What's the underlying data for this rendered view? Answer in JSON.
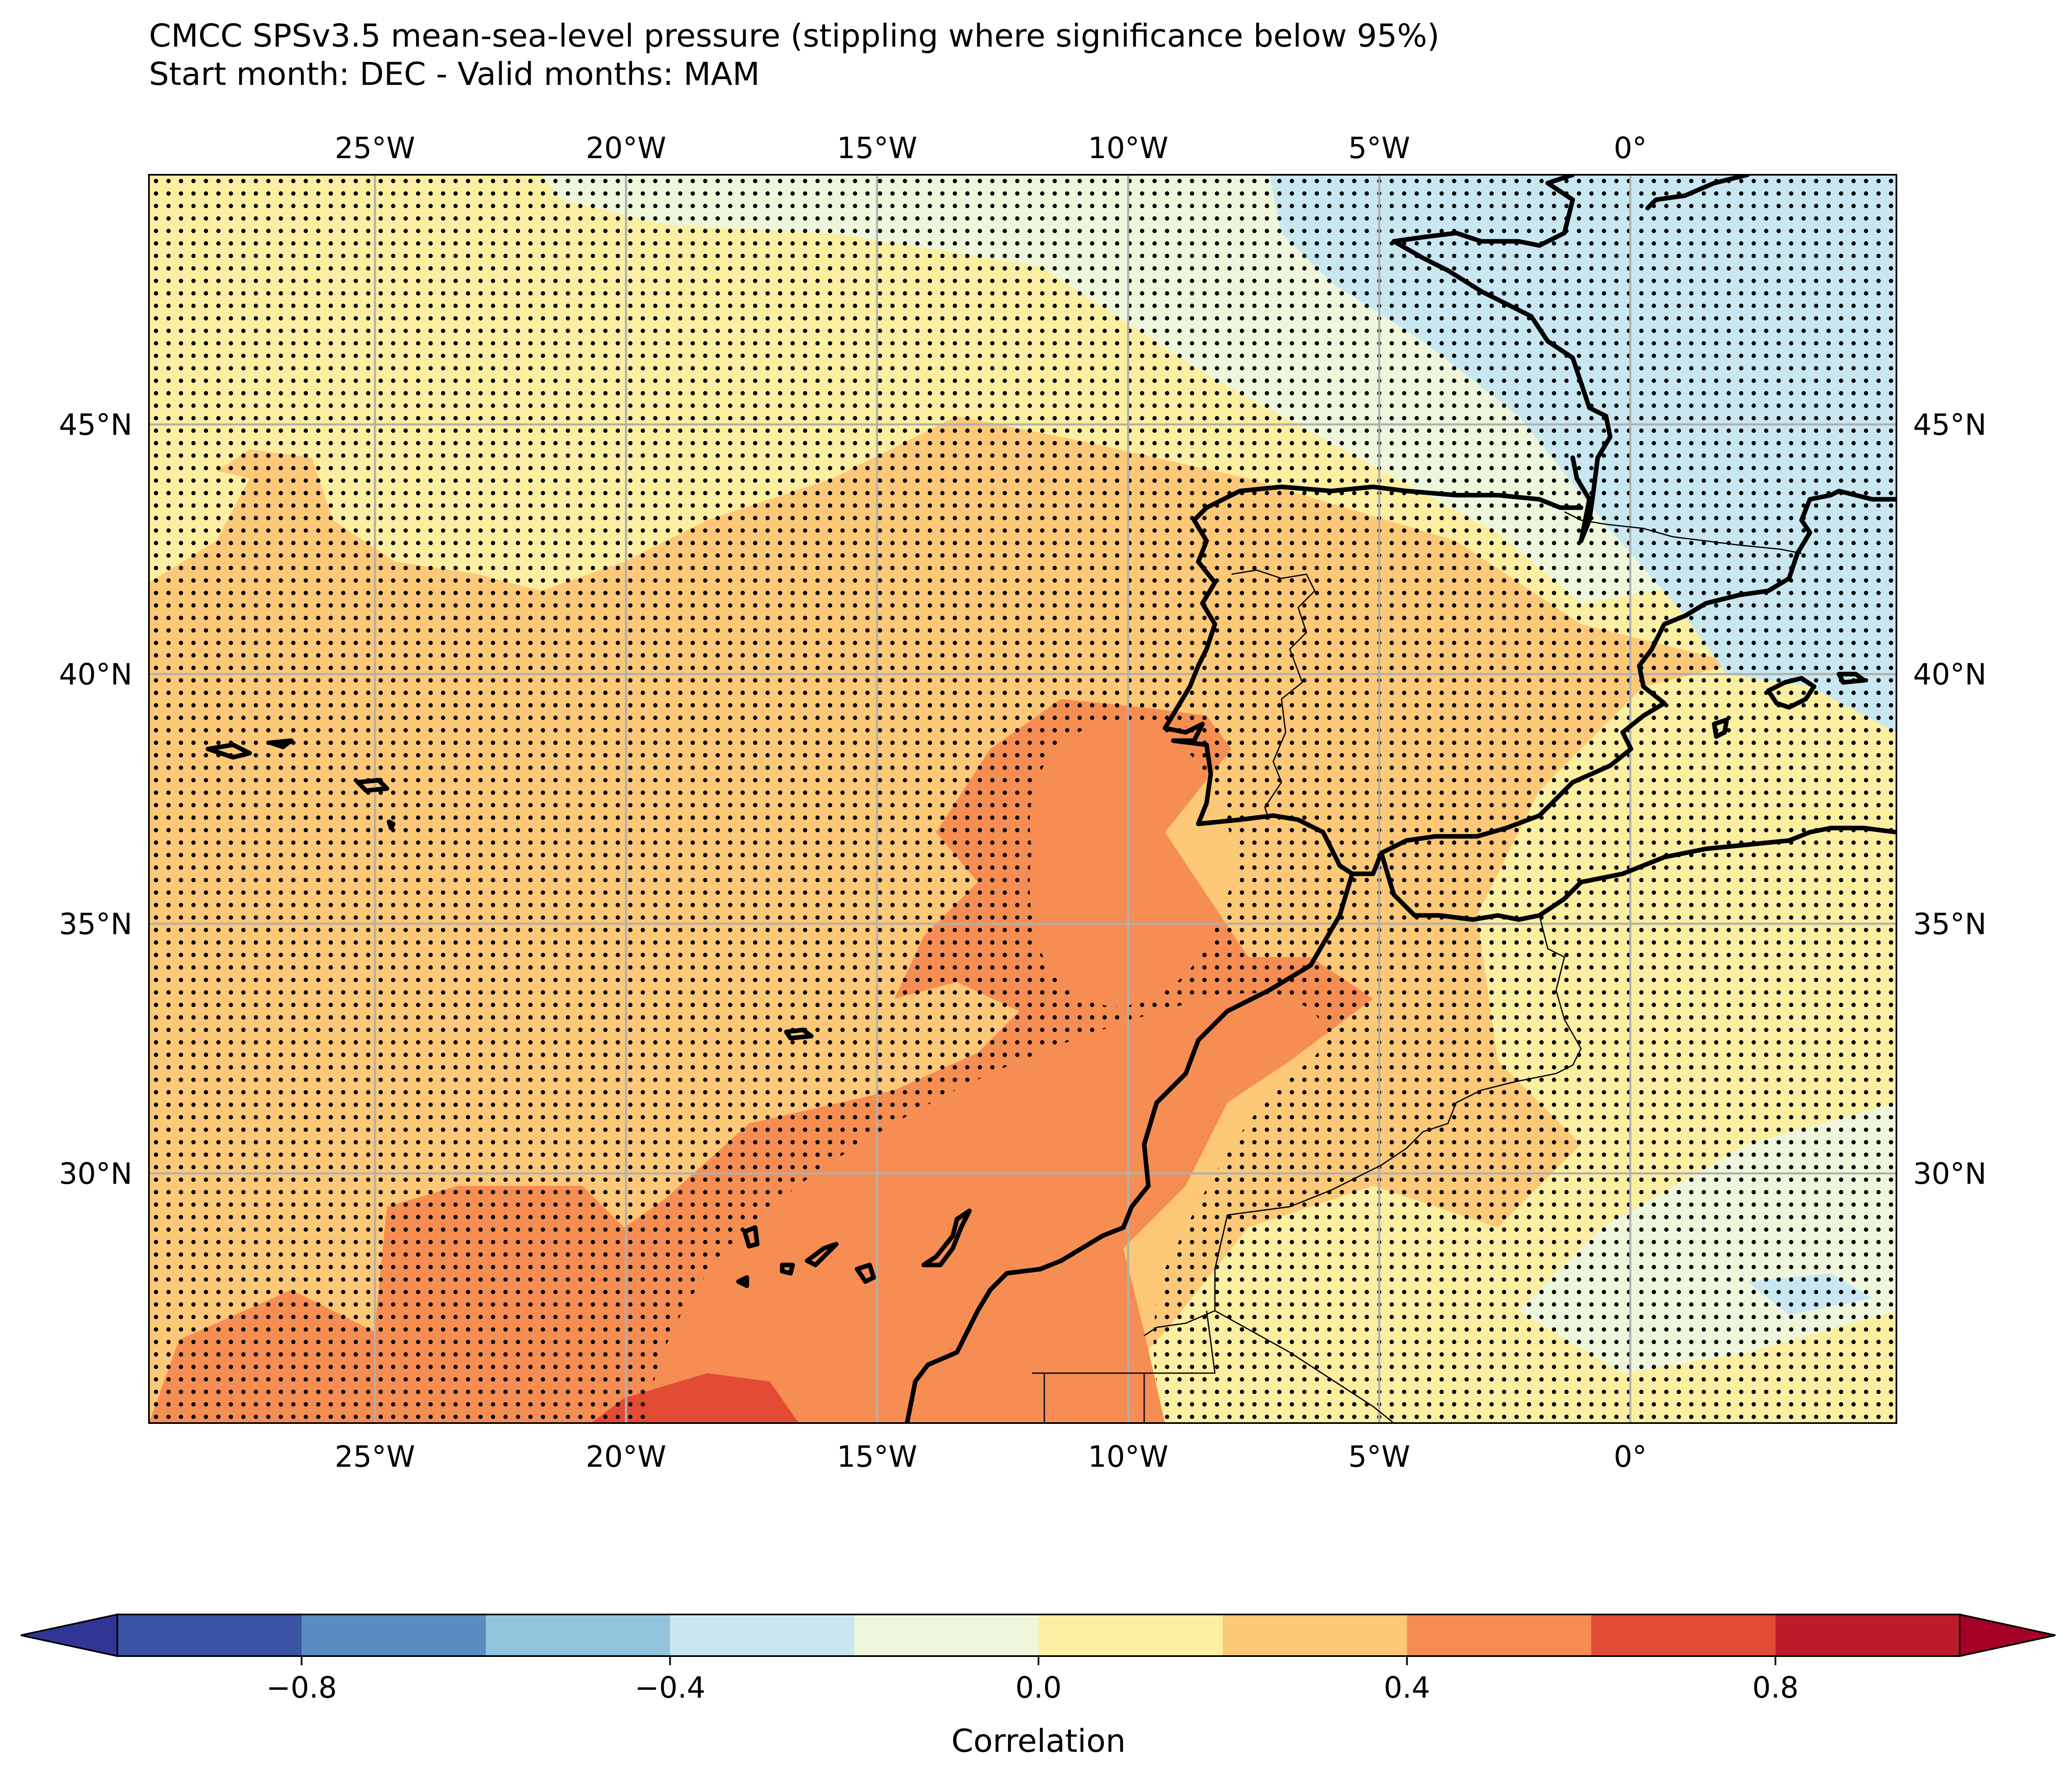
{
  "title": {
    "line1": "CMCC SPSv3.5 mean-sea-level pressure (stippling where significance below 95%)",
    "line2": "Start month: DEC - Valid months: MAM"
  },
  "map": {
    "lon_range": [
      -29.5,
      5.3
    ],
    "lat_range": [
      25.0,
      50.0
    ],
    "lon_ticks": [
      {
        "value": -25,
        "label": "25°W"
      },
      {
        "value": -20,
        "label": "20°W"
      },
      {
        "value": -15,
        "label": "15°W"
      },
      {
        "value": -10,
        "label": "10°W"
      },
      {
        "value": -5,
        "label": "5°W"
      },
      {
        "value": 0,
        "label": "0°"
      }
    ],
    "lat_ticks": [
      {
        "value": 30,
        "label": "30°N"
      },
      {
        "value": 35,
        "label": "35°N"
      },
      {
        "value": 40,
        "label": "40°N"
      },
      {
        "value": 45,
        "label": "45°N"
      }
    ],
    "gridlines": true,
    "gridline_color": "#b0b0b0",
    "stippling_meaning": "significance below 95%",
    "regions": [
      {
        "level": "0.2 to 0.4",
        "color": "#fdc877",
        "area": "central Atlantic, Iberian Peninsula, Morocco"
      },
      {
        "level": "0.4 to 0.6",
        "color": "#f68d53",
        "area": "Canary Islands and Moroccan coast"
      },
      {
        "level": "0.6 to 0.8",
        "color": "#e34c34",
        "area": "southern edge near 19°W"
      },
      {
        "level": "0.0 to 0.2",
        "color": "#fcefa2",
        "area": "north Atlantic, Algeria"
      },
      {
        "level": "-0.2 to 0.0",
        "color": "#eef7dc",
        "area": "France, Mediterranean"
      },
      {
        "level": "-0.4 to -0.2",
        "color": "#c9e7f1",
        "area": "Bay of Biscay to Gulf of Lion"
      }
    ]
  },
  "colorbar": {
    "label": "Correlation",
    "bounds": [
      -1.0,
      1.0
    ],
    "extend": "both",
    "colors": [
      "#3a53a3",
      "#5b8cc0",
      "#92c4de",
      "#c9e7f1",
      "#eef7dc",
      "#fcefa2",
      "#fdc877",
      "#f68d53",
      "#e34c34",
      "#bd1b2a"
    ],
    "extend_low_color": "#313695",
    "extend_high_color": "#a50026",
    "ticks": [
      {
        "value": -0.8,
        "label": "−0.8"
      },
      {
        "value": -0.4,
        "label": "−0.4"
      },
      {
        "value": 0.0,
        "label": "0.0"
      },
      {
        "value": 0.4,
        "label": "0.4"
      },
      {
        "value": 0.8,
        "label": "0.8"
      }
    ]
  }
}
